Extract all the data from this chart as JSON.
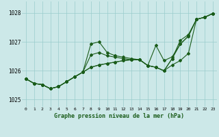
{
  "background_color": "#cce8e8",
  "grid_color": "#99cccc",
  "line_color": "#1a5c1a",
  "title": "Graphe pression niveau de la mer (hPa)",
  "xlim": [
    -0.5,
    23.5
  ],
  "ylim": [
    1024.75,
    1028.4
  ],
  "yticks": [
    1025,
    1026,
    1027,
    1028
  ],
  "xticks": [
    0,
    1,
    2,
    3,
    4,
    5,
    6,
    7,
    8,
    9,
    10,
    11,
    12,
    13,
    14,
    15,
    16,
    17,
    18,
    19,
    20,
    21,
    22,
    23
  ],
  "series": [
    {
      "name": "line1_wiggly",
      "x": [
        0,
        1,
        2,
        3,
        4,
        5,
        6,
        7,
        8,
        9,
        10,
        11,
        12,
        13,
        14,
        15,
        16,
        17,
        18,
        19,
        20,
        21,
        22,
        23
      ],
      "y": [
        1025.72,
        1025.56,
        1025.52,
        1025.38,
        1025.45,
        1025.62,
        1025.79,
        1025.95,
        1026.93,
        1027.0,
        1026.63,
        1026.52,
        1026.47,
        1026.42,
        1026.38,
        1026.18,
        1026.12,
        1026.0,
        1026.2,
        1026.35,
        1026.6,
        1027.78,
        1027.85,
        1027.98
      ]
    },
    {
      "name": "line2_high",
      "x": [
        0,
        1,
        2,
        3,
        4,
        5,
        6,
        7,
        8,
        9,
        10,
        11,
        12,
        13,
        14,
        15,
        16,
        17,
        18,
        19,
        20,
        21,
        22,
        23
      ],
      "y": [
        1025.72,
        1025.56,
        1025.52,
        1025.38,
        1025.45,
        1025.62,
        1025.79,
        1025.95,
        1026.55,
        1026.63,
        1026.52,
        1026.47,
        1026.42,
        1026.38,
        1026.38,
        1026.18,
        1026.12,
        1026.0,
        1026.42,
        1027.05,
        1027.25,
        1027.78,
        1027.85,
        1027.98
      ]
    },
    {
      "name": "line3_smooth",
      "x": [
        0,
        1,
        2,
        3,
        4,
        5,
        6,
        7,
        8,
        9,
        10,
        11,
        12,
        13,
        14,
        15,
        16,
        17,
        18,
        19,
        20,
        21,
        22,
        23
      ],
      "y": [
        1025.72,
        1025.56,
        1025.52,
        1025.38,
        1025.45,
        1025.62,
        1025.79,
        1025.95,
        1026.12,
        1026.2,
        1026.25,
        1026.3,
        1026.35,
        1026.38,
        1026.38,
        1026.18,
        1026.12,
        1026.0,
        1026.42,
        1026.92,
        1027.2,
        1027.78,
        1027.85,
        1027.98
      ]
    },
    {
      "name": "line4_dip",
      "x": [
        0,
        1,
        2,
        3,
        4,
        5,
        6,
        7,
        8,
        9,
        10,
        11,
        12,
        13,
        14,
        15,
        16,
        17,
        18,
        19,
        20,
        21,
        22,
        23
      ],
      "y": [
        1025.72,
        1025.56,
        1025.52,
        1025.38,
        1025.45,
        1025.62,
        1025.79,
        1025.95,
        1026.12,
        1026.2,
        1026.25,
        1026.3,
        1026.35,
        1026.38,
        1026.38,
        1026.18,
        1026.88,
        1026.35,
        1026.48,
        1026.92,
        1027.2,
        1027.78,
        1027.85,
        1027.98
      ]
    }
  ]
}
